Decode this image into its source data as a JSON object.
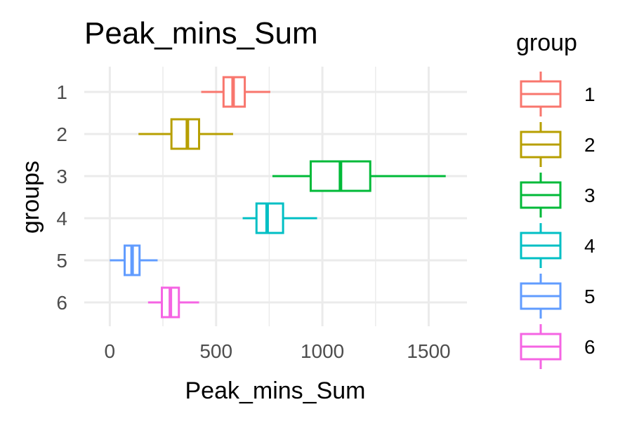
{
  "chart_data": {
    "type": "boxplot",
    "orientation": "horizontal",
    "title": "Peak_mins_Sum",
    "xlabel": "Peak_mins_Sum",
    "ylabel": "groups",
    "xlim": [
      -120,
      1680
    ],
    "xticks": [
      0,
      500,
      1000,
      1500
    ],
    "grid": true,
    "legend_title": "group",
    "legend_position": "right",
    "categories": [
      "1",
      "2",
      "3",
      "4",
      "5",
      "6"
    ],
    "series": [
      {
        "name": "1",
        "color": "#F8766D",
        "whisker_low": 430,
        "q1": 535,
        "median": 580,
        "q3": 635,
        "whisker_high": 755
      },
      {
        "name": "2",
        "color": "#B79F00",
        "whisker_low": 135,
        "q1": 290,
        "median": 365,
        "q3": 420,
        "whisker_high": 580
      },
      {
        "name": "3",
        "color": "#00BA38",
        "whisker_low": 765,
        "q1": 945,
        "median": 1085,
        "q3": 1225,
        "whisker_high": 1580
      },
      {
        "name": "4",
        "color": "#00BFC4",
        "whisker_low": 625,
        "q1": 690,
        "median": 740,
        "q3": 815,
        "whisker_high": 975
      },
      {
        "name": "5",
        "color": "#619CFF",
        "whisker_low": 0,
        "q1": 70,
        "median": 105,
        "q3": 140,
        "whisker_high": 225
      },
      {
        "name": "6",
        "color": "#F564E3",
        "whisker_low": 180,
        "q1": 245,
        "median": 285,
        "q3": 325,
        "whisker_high": 420
      }
    ]
  }
}
